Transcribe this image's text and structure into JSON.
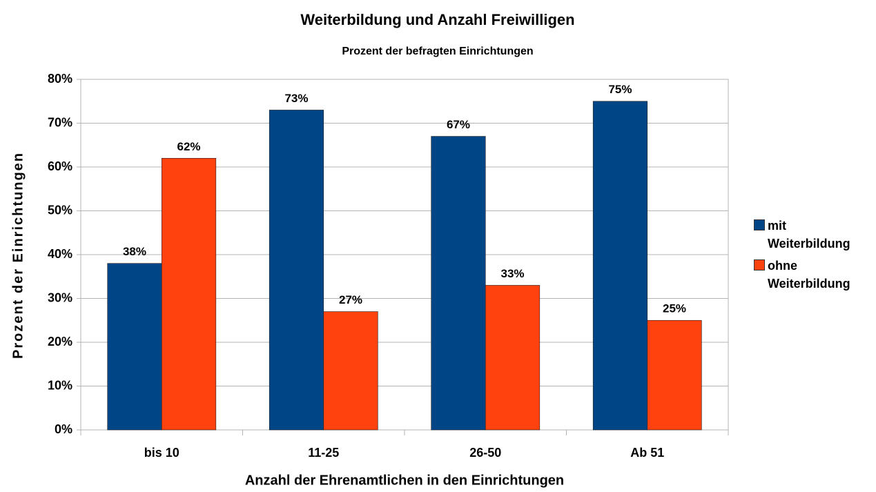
{
  "chart_data": {
    "type": "bar",
    "title": "Weiterbildung und Anzahl Freiwilligen",
    "subtitle": "Prozent der befragten Einrichtungen",
    "x_label": "Anzahl der Ehrenamtlichen in den Einrichtungen",
    "y_label": "Prozent der Einrichtungen",
    "categories": [
      "bis 10",
      "11-25",
      "26-50",
      "Ab 51"
    ],
    "series": [
      {
        "name": "mit Weiterbildung",
        "color": "#004586",
        "values": [
          38,
          73,
          67,
          75
        ],
        "value_labels": [
          "38%",
          "73%",
          "67%",
          "75%"
        ]
      },
      {
        "name": "ohne Weiterbildung",
        "color": "#ff420e",
        "values": [
          62,
          27,
          33,
          25
        ],
        "value_labels": [
          "62%",
          "27%",
          "33%",
          "25%"
        ]
      }
    ],
    "ylim": [
      0,
      80
    ],
    "yticks": [
      {
        "value": 0,
        "label": "0%"
      },
      {
        "value": 10,
        "label": "10%"
      },
      {
        "value": 20,
        "label": "20%"
      },
      {
        "value": 30,
        "label": "30%"
      },
      {
        "value": 40,
        "label": "40%"
      },
      {
        "value": 50,
        "label": "50%"
      },
      {
        "value": 60,
        "label": "60%"
      },
      {
        "value": 70,
        "label": "70%"
      },
      {
        "value": 80,
        "label": "80%"
      }
    ],
    "grid": true,
    "legend": "right"
  }
}
